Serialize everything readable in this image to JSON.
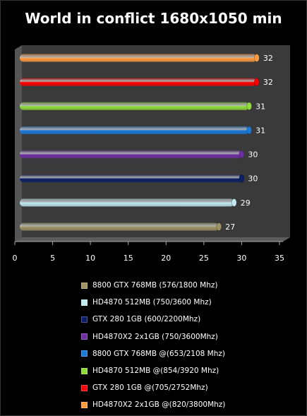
{
  "chart_data": {
    "type": "bar",
    "orientation": "horizontal",
    "title": "World in conflict 1680x1050 min",
    "xlabel": "",
    "ylabel": "",
    "xlim": [
      0,
      35
    ],
    "x_ticks": [
      0,
      5,
      10,
      15,
      20,
      25,
      30,
      35
    ],
    "grid": false,
    "legend_position": "bottom",
    "series": [
      {
        "name": "8800 GTX 768MB (576/1800 Mhz)",
        "value": 27,
        "color": "#9c9463"
      },
      {
        "name": "HD4870 512MB (750/3600 Mhz)",
        "value": 29,
        "color": "#bfe8ef"
      },
      {
        "name": "GTX 280 1GB (600/2200Mhz)",
        "value": 30,
        "color": "#0a1f66"
      },
      {
        "name": "HD4870X2 2x1GB (750/3600Mhz)",
        "value": 30,
        "color": "#6f2fa3"
      },
      {
        "name": "8800 GTX 768MB @(653/2108 Mhz)",
        "value": 31,
        "color": "#1a7ad9"
      },
      {
        "name": "HD4870 512MB @(854/3920 Mhz)",
        "value": 31,
        "color": "#8edb3a"
      },
      {
        "name": "GTX 280 1GB @(705/2752Mhz)",
        "value": 32,
        "color": "#ff0000"
      },
      {
        "name": "HD4870X2 2x1GB @(820/3800Mhz)",
        "value": 32,
        "color": "#ff9a40"
      }
    ]
  }
}
